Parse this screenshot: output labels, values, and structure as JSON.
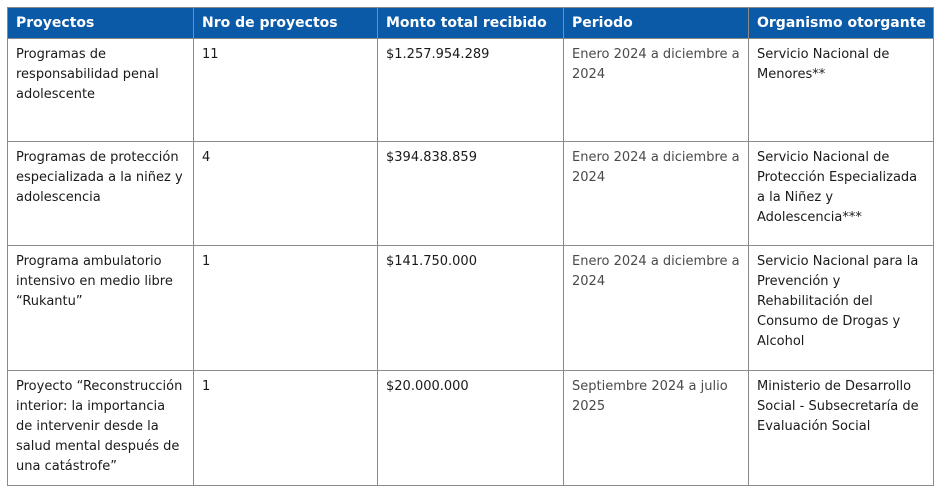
{
  "table": {
    "headers": [
      "Proyectos",
      "Nro de proyectos",
      "Monto total recibido",
      "Periodo",
      "Organismo otorgante"
    ],
    "rows": [
      {
        "proyecto": "Programas de responsabilidad penal adolescente",
        "nro": "11",
        "monto": "$1.257.954.289",
        "periodo": "Enero 2024 a diciembre a 2024",
        "organismo": "Servicio Nacional de Menores**"
      },
      {
        "proyecto": "Programas de protección especializada a la niñez y adolescencia",
        "nro": "4",
        "monto": "$394.838.859",
        "periodo": "Enero 2024 a diciembre a 2024",
        "organismo": "Servicio Nacional de Protección Especializada a la Niñez y Adolescencia***"
      },
      {
        "proyecto": "Programa ambulatorio intensivo en medio libre “Rukantu”",
        "nro": "1",
        "monto": "$141.750.000",
        "periodo": "Enero 2024 a diciembre a 2024",
        "organismo": "Servicio Nacional para la Prevención y Rehabilitación del Consumo de Drogas y Alcohol"
      },
      {
        "proyecto": "Proyecto “Reconstrucción interior: la importancia de intervenir desde la salud mental después de una catástrofe”",
        "nro": "1",
        "monto": "$20.000.000",
        "periodo": "Septiembre 2024 a julio 2025",
        "organismo": "Ministerio de Desarrollo Social - Subsecretaría de Evaluación Social"
      }
    ]
  },
  "colors": {
    "header_bg": "#0a5aa8",
    "header_text": "#ffffff",
    "border": "#8a8a8a",
    "periodo_text": "#4a4a4a"
  }
}
